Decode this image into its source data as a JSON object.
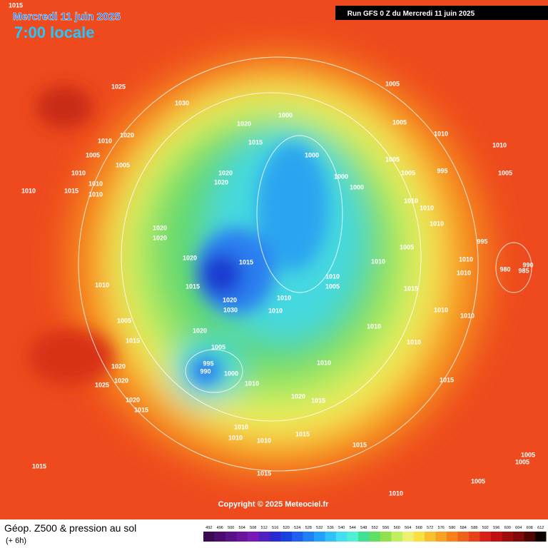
{
  "header": {
    "date": "Mercredi 11 juin 2025",
    "time": "7:00 locale",
    "run": "Run GFS 0 Z du Mercredi 11 juin 2025"
  },
  "map": {
    "pressure_labels": [
      1015,
      1025,
      1030,
      1020,
      1010,
      1005,
      1005,
      1010,
      1010,
      1015,
      1010,
      1010,
      1020,
      1015,
      1000,
      1005,
      1005,
      1010,
      1010,
      1000,
      1005,
      1005,
      995,
      1005,
      1020,
      1020,
      1000,
      1000,
      1010,
      1010,
      1020,
      1020,
      1010,
      995,
      1005,
      1020,
      1015,
      1010,
      1010,
      1010,
      980,
      990,
      985,
      1010,
      1015,
      1010,
      1005,
      1010,
      1020,
      1030,
      1010,
      1015,
      1010,
      1010,
      1005,
      1010,
      1020,
      1015,
      1005,
      1010,
      995,
      990,
      1000,
      1010,
      1020,
      1020,
      1025,
      1015,
      1010,
      1020,
      1015,
      1020,
      1015,
      1010,
      1010,
      1015,
      1010,
      1015,
      1005,
      1005,
      1015,
      1015,
      1005,
      1010
    ],
    "copyright": "Copyright © 2025 Meteociel.fr"
  },
  "footer": {
    "title": "Géop. Z500 & pression au sol",
    "subtitle": "(+ 6h)"
  },
  "legend": {
    "levels": [
      492,
      496,
      500,
      504,
      508,
      512,
      516,
      520,
      524,
      528,
      532,
      536,
      540,
      544,
      548,
      552,
      556,
      560,
      564,
      568,
      572,
      576,
      580,
      584,
      588,
      592,
      596,
      600,
      604,
      608,
      612
    ],
    "colors": [
      "#3a0a55",
      "#4a0c70",
      "#5a108a",
      "#6a14a0",
      "#7a1ab5",
      "#5020c0",
      "#2a2ad0",
      "#1a40e0",
      "#1f60f0",
      "#2080f8",
      "#20a0f8",
      "#30c0f8",
      "#40e0f0",
      "#50f0d0",
      "#40e090",
      "#60e060",
      "#90e050",
      "#c0f060",
      "#f0f070",
      "#f8e040",
      "#f8c030",
      "#f8a020",
      "#f88018",
      "#f06018",
      "#e84018",
      "#d82018",
      "#c01010",
      "#a00c0c",
      "#800808",
      "#500404",
      "#100000"
    ]
  }
}
